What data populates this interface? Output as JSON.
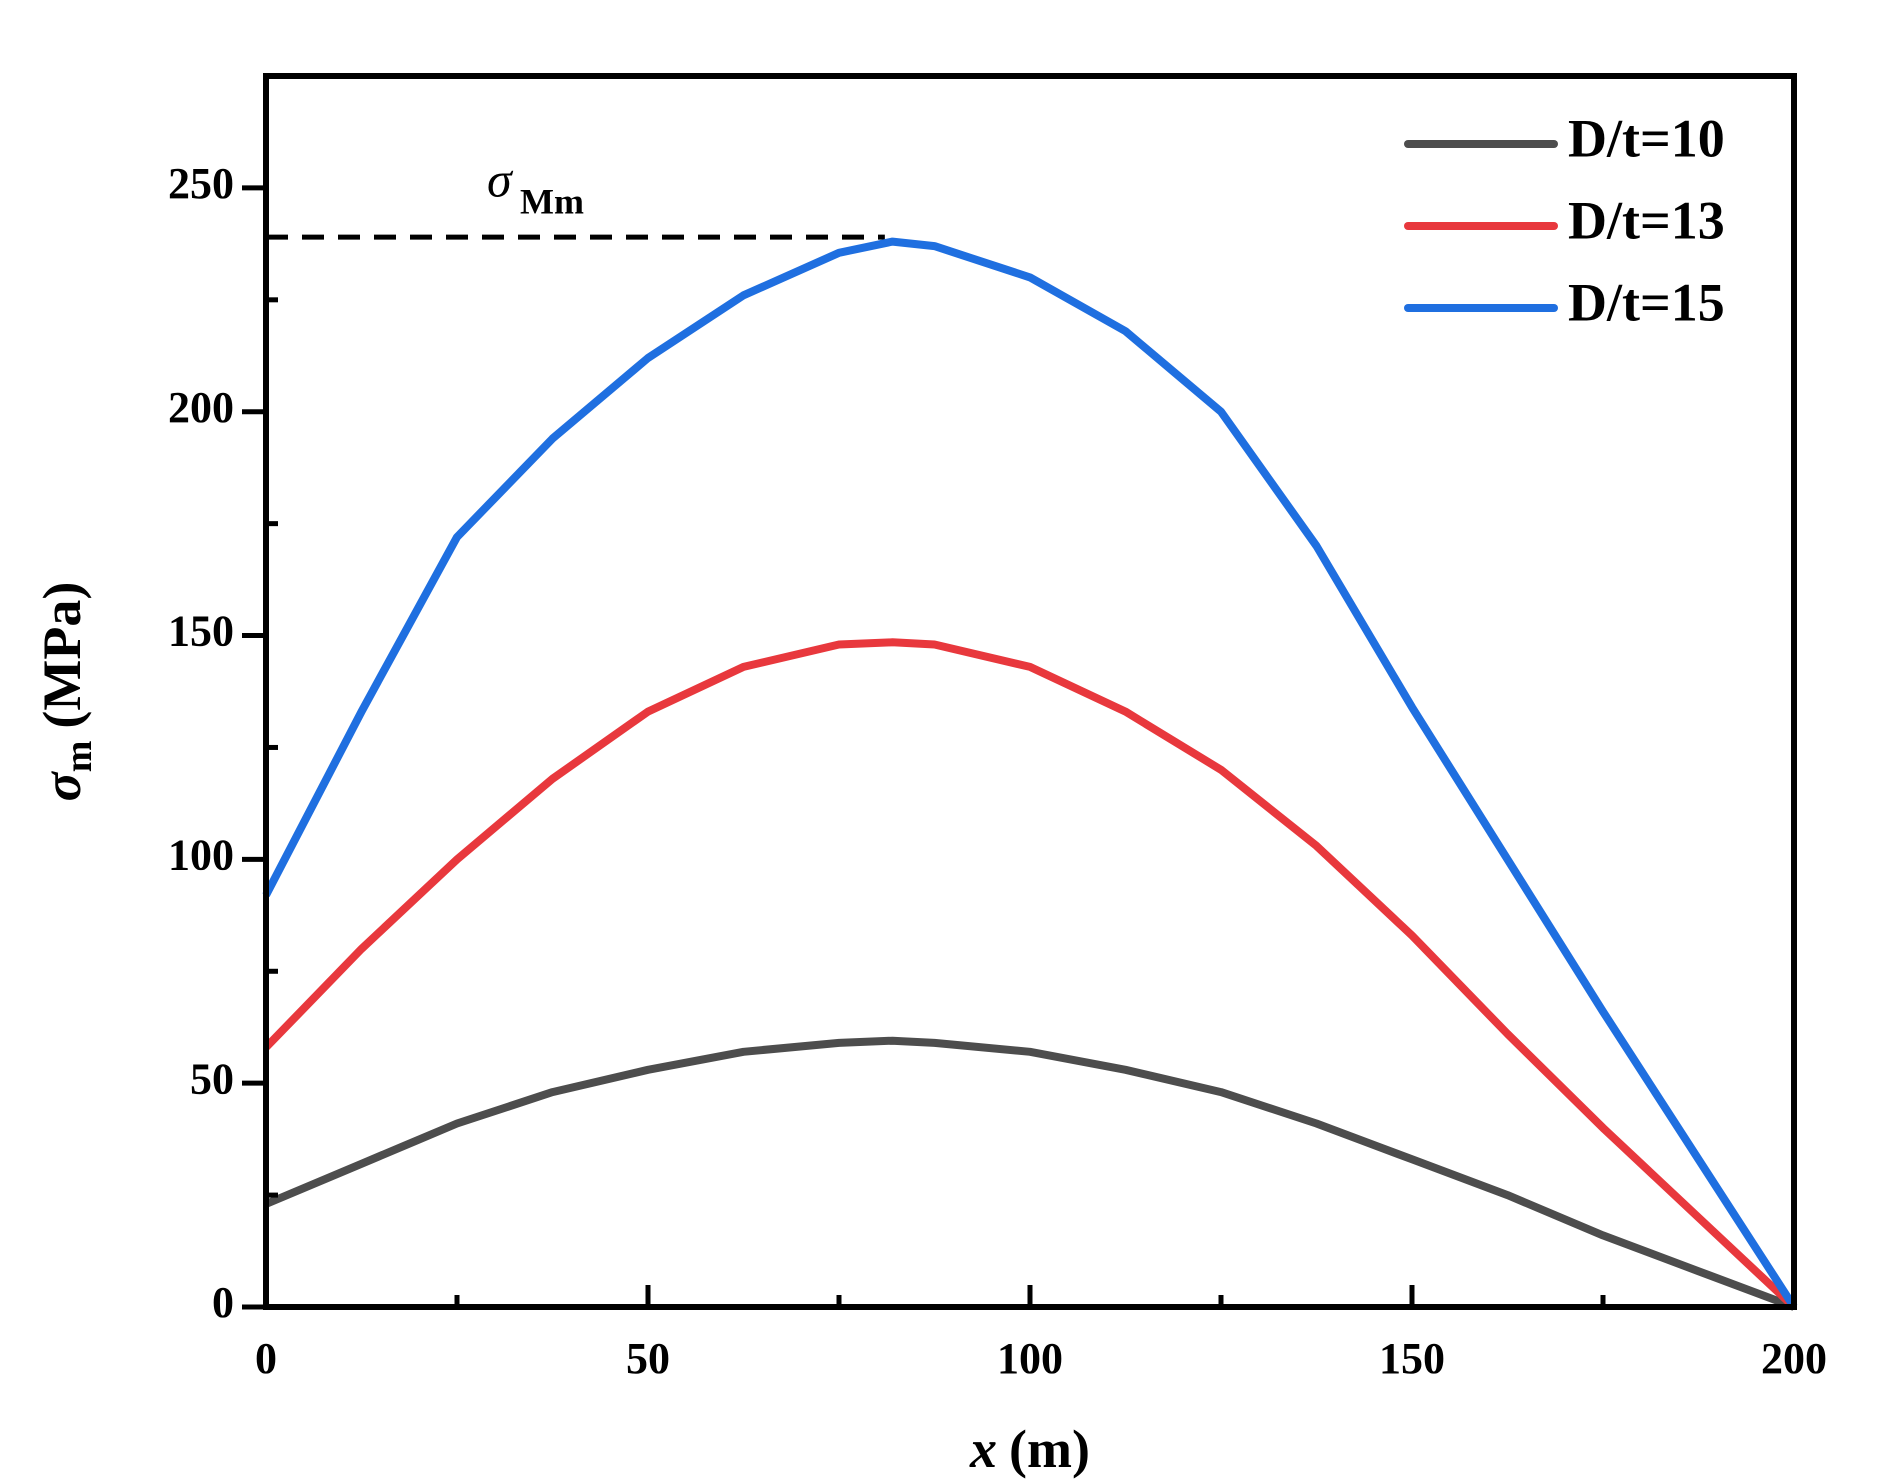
{
  "chart_data": {
    "type": "line",
    "xlabel": {
      "symbol": "x",
      "unit": "(m)"
    },
    "ylabel": {
      "symbol": "σ",
      "subscript": "m",
      "unit": "(MPa)"
    },
    "annotation": {
      "symbol": "σ",
      "subscript": "Mm",
      "y": 239,
      "x": [
        0,
        81
      ]
    },
    "x": [
      0,
      12.5,
      25,
      37.5,
      50,
      62.5,
      75,
      82,
      87.5,
      100,
      112.5,
      125,
      137.5,
      150,
      162.5,
      175,
      187.5,
      200
    ],
    "series": [
      {
        "name": "D/t=10",
        "color": "#4d4d4d",
        "values": [
          23,
          32,
          41,
          48,
          53,
          57,
          59,
          59.5,
          59,
          57,
          53,
          48,
          41,
          33,
          25,
          16,
          8,
          0
        ]
      },
      {
        "name": "D/t=13",
        "color": "#e8383d",
        "values": [
          58,
          80,
          100,
          118,
          133,
          143,
          148,
          148.5,
          148,
          143,
          133,
          120,
          103,
          83,
          61,
          40,
          20,
          0
        ]
      },
      {
        "name": "D/t=15",
        "color": "#1f6fe0",
        "values": [
          92,
          133,
          172,
          194,
          212,
          226,
          235.5,
          238,
          237,
          230,
          218,
          200,
          170,
          134,
          100,
          66,
          33,
          0
        ]
      }
    ],
    "xlim": [
      0,
      200
    ],
    "xticks": [
      0,
      50,
      100,
      150,
      200
    ],
    "xminor": [
      25,
      75,
      125,
      175
    ],
    "ylim": [
      0,
      275
    ],
    "yticks": [
      0,
      50,
      100,
      150,
      200,
      250
    ],
    "yminor": [
      25,
      75,
      125,
      175,
      225
    ],
    "legend": "upper right"
  }
}
